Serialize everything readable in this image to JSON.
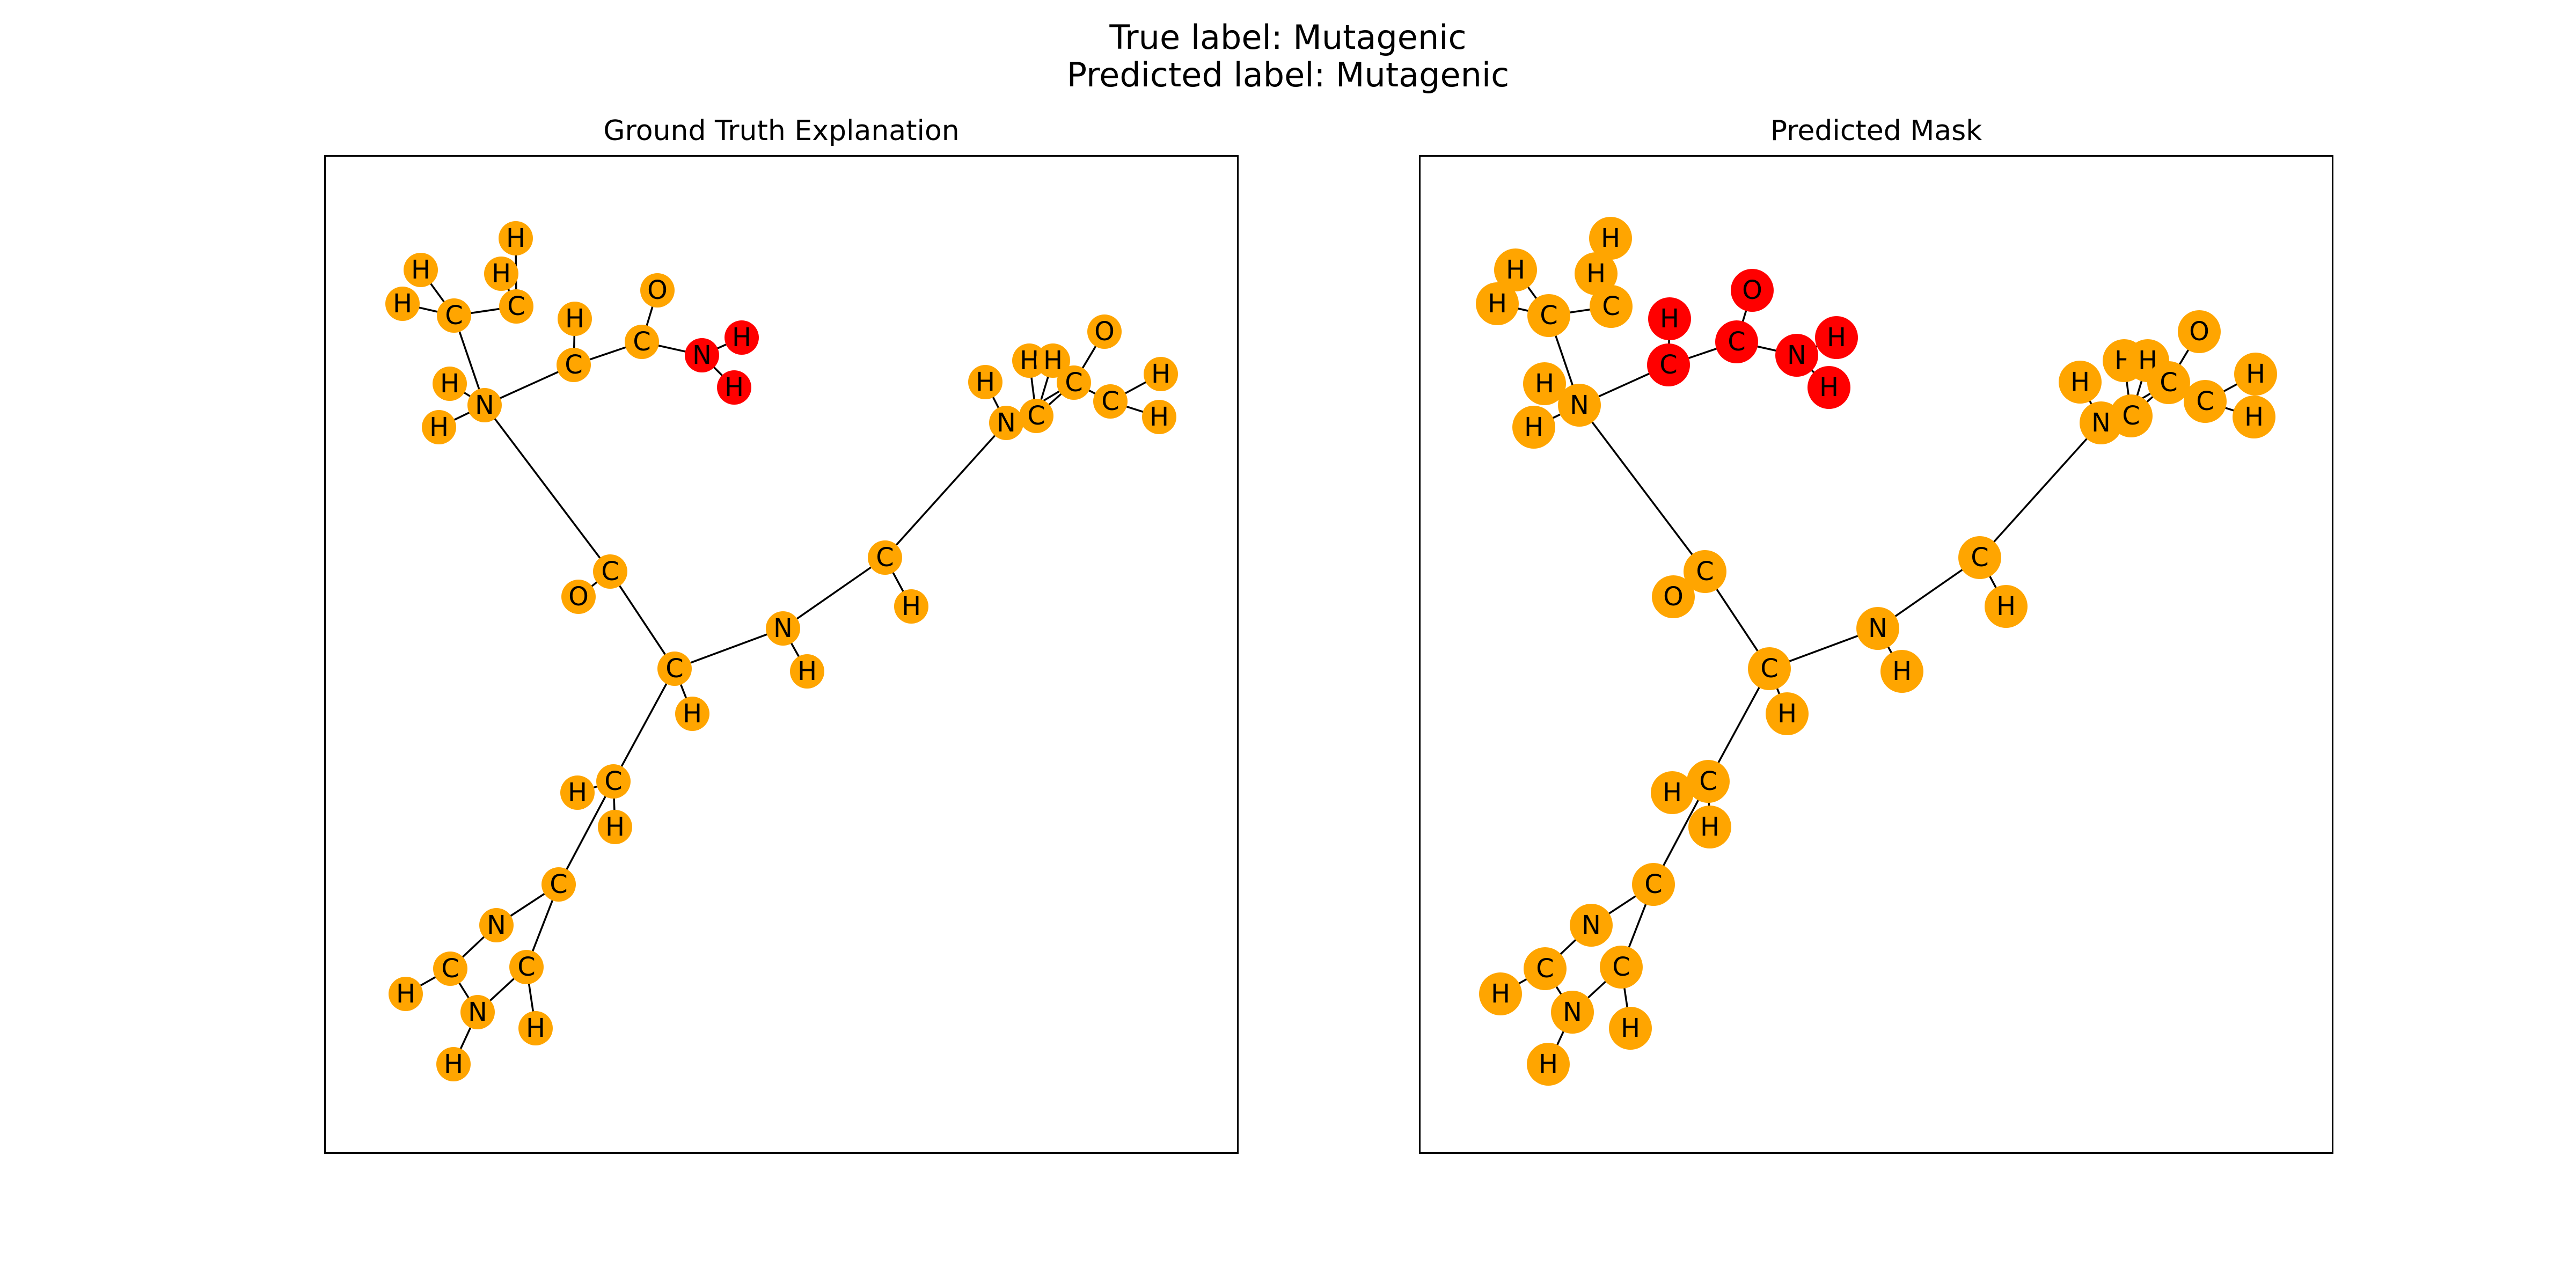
{
  "figure": {
    "title_line1": "True label: Mutagenic",
    "title_line2": "Predicted label: Mutagenic"
  },
  "colors": {
    "normal": "#FFA500",
    "highlight": "#FF0000",
    "edge": "#000000"
  },
  "panels": [
    {
      "title": "Ground Truth Explanation",
      "highlight": [
        25,
        26,
        27
      ]
    },
    {
      "title": "Predicted Mask",
      "highlight": [
        21,
        23,
        24,
        25,
        26,
        27
      ]
    }
  ],
  "molecule": {
    "atoms": [
      {
        "id": 0,
        "label": "C"
      },
      {
        "id": 1,
        "label": "H"
      },
      {
        "id": 2,
        "label": "C"
      },
      {
        "id": 3,
        "label": "O"
      },
      {
        "id": 4,
        "label": "N"
      },
      {
        "id": 5,
        "label": "H"
      },
      {
        "id": 6,
        "label": "C"
      },
      {
        "id": 7,
        "label": "O"
      },
      {
        "id": 8,
        "label": "C"
      },
      {
        "id": 9,
        "label": "H"
      },
      {
        "id": 10,
        "label": "N"
      },
      {
        "id": 11,
        "label": "H"
      },
      {
        "id": 12,
        "label": "C"
      },
      {
        "id": 13,
        "label": "H"
      },
      {
        "id": 14,
        "label": "H"
      },
      {
        "id": 15,
        "label": "C"
      },
      {
        "id": 16,
        "label": "H"
      },
      {
        "id": 17,
        "label": "H"
      },
      {
        "id": 18,
        "label": "C"
      },
      {
        "id": 19,
        "label": "H"
      },
      {
        "id": 20,
        "label": "H"
      },
      {
        "id": 21,
        "label": "C"
      },
      {
        "id": 22,
        "label": "H"
      },
      {
        "id": 23,
        "label": "H"
      },
      {
        "id": 24,
        "label": "C"
      },
      {
        "id": 25,
        "label": "O"
      },
      {
        "id": 26,
        "label": "N"
      },
      {
        "id": 27,
        "label": "H"
      },
      {
        "id": 28,
        "label": "H"
      },
      {
        "id": 29,
        "label": "C"
      },
      {
        "id": 30,
        "label": "H"
      },
      {
        "id": 31,
        "label": "N"
      },
      {
        "id": 32,
        "label": "H"
      },
      {
        "id": 33,
        "label": "C"
      },
      {
        "id": 34,
        "label": "H"
      },
      {
        "id": 35,
        "label": "H"
      },
      {
        "id": 36,
        "label": "C"
      },
      {
        "id": 37,
        "label": "O"
      },
      {
        "id": 38,
        "label": "C"
      },
      {
        "id": 39,
        "label": "H"
      },
      {
        "id": 40,
        "label": "H"
      },
      {
        "id": 41,
        "label": "C"
      },
      {
        "id": 42,
        "label": "N"
      },
      {
        "id": 43,
        "label": "C"
      },
      {
        "id": 44,
        "label": "H"
      },
      {
        "id": 45,
        "label": "N"
      },
      {
        "id": 46,
        "label": "H"
      },
      {
        "id": 47,
        "label": "C"
      },
      {
        "id": 48,
        "label": "H"
      }
    ],
    "bonds": [
      [
        0,
        1
      ],
      [
        0,
        2
      ],
      [
        2,
        3
      ],
      [
        2,
        4
      ],
      [
        4,
        5
      ],
      [
        4,
        6
      ],
      [
        6,
        7
      ],
      [
        6,
        8
      ],
      [
        8,
        9
      ],
      [
        0,
        10
      ],
      [
        10,
        11
      ],
      [
        10,
        12
      ],
      [
        12,
        13
      ],
      [
        12,
        14
      ],
      [
        12,
        15
      ],
      [
        15,
        16
      ],
      [
        15,
        17
      ],
      [
        10,
        18
      ],
      [
        18,
        19
      ],
      [
        18,
        20
      ],
      [
        18,
        21
      ],
      [
        21,
        22
      ],
      [
        21,
        24
      ],
      [
        24,
        25
      ],
      [
        24,
        26
      ],
      [
        26,
        27
      ],
      [
        26,
        28
      ],
      [
        0,
        29
      ],
      [
        29,
        30
      ],
      [
        29,
        41
      ],
      [
        8,
        31
      ],
      [
        31,
        32
      ],
      [
        31,
        33
      ],
      [
        33,
        34
      ],
      [
        31,
        36
      ],
      [
        36,
        37
      ],
      [
        36,
        38
      ],
      [
        38,
        39
      ],
      [
        38,
        40
      ],
      [
        41,
        42
      ],
      [
        41,
        47
      ],
      [
        42,
        43
      ],
      [
        43,
        44
      ],
      [
        43,
        45
      ],
      [
        45,
        46
      ],
      [
        45,
        47
      ],
      [
        47,
        48
      ]
    ]
  }
}
